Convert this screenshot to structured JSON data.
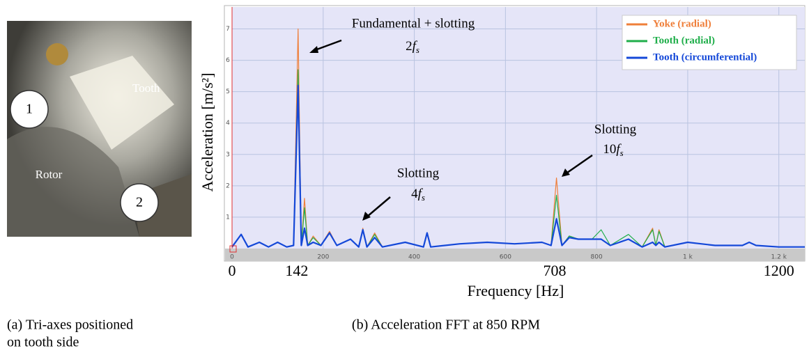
{
  "chart_data": {
    "type": "line",
    "y_label": "Acceleration [m/s²]",
    "x_label": "Frequency [Hz]",
    "x": [
      0,
      20,
      35,
      60,
      80,
      100,
      120,
      135,
      145,
      152,
      159,
      166,
      178,
      195,
      214,
      230,
      260,
      278,
      287,
      296,
      313,
      330,
      380,
      420,
      428,
      436,
      500,
      560,
      620,
      680,
      700,
      712,
      724,
      740,
      760,
      790,
      810,
      830,
      870,
      900,
      923,
      930,
      937,
      950,
      1000,
      1060,
      1120,
      1135,
      1150,
      1200,
      1257
    ],
    "series": [
      {
        "name": "Yoke (radial)",
        "color": "#ef7f3a",
        "values": [
          0.05,
          0.45,
          0.05,
          0.2,
          0.05,
          0.2,
          0.05,
          0.1,
          7.0,
          0.1,
          1.6,
          0.1,
          0.4,
          0.1,
          0.55,
          0.1,
          0.3,
          0.05,
          0.65,
          0.05,
          0.5,
          0.05,
          0.2,
          0.05,
          0.5,
          0.05,
          0.15,
          0.2,
          0.15,
          0.2,
          0.1,
          2.25,
          0.1,
          0.4,
          0.3,
          0.3,
          0.3,
          0.1,
          0.3,
          0.05,
          0.65,
          0.1,
          0.6,
          0.05,
          0.2,
          0.1,
          0.1,
          0.2,
          0.1,
          0.05,
          0.05
        ]
      },
      {
        "name": "Tooth (radial)",
        "color": "#1fae4a",
        "values": [
          0.05,
          0.45,
          0.05,
          0.2,
          0.05,
          0.2,
          0.05,
          0.1,
          5.7,
          0.1,
          1.3,
          0.1,
          0.35,
          0.1,
          0.5,
          0.1,
          0.3,
          0.05,
          0.6,
          0.05,
          0.45,
          0.05,
          0.2,
          0.05,
          0.5,
          0.05,
          0.15,
          0.2,
          0.15,
          0.2,
          0.1,
          1.7,
          0.1,
          0.4,
          0.3,
          0.3,
          0.6,
          0.1,
          0.45,
          0.05,
          0.6,
          0.1,
          0.55,
          0.05,
          0.2,
          0.1,
          0.1,
          0.2,
          0.1,
          0.05,
          0.05
        ]
      },
      {
        "name": "Tooth (circumferential)",
        "color": "#1448d8",
        "values": [
          0.05,
          0.45,
          0.05,
          0.2,
          0.05,
          0.2,
          0.05,
          0.1,
          5.2,
          0.1,
          0.65,
          0.1,
          0.2,
          0.1,
          0.5,
          0.1,
          0.3,
          0.05,
          0.6,
          0.05,
          0.35,
          0.05,
          0.2,
          0.05,
          0.5,
          0.05,
          0.15,
          0.2,
          0.15,
          0.2,
          0.1,
          0.95,
          0.1,
          0.35,
          0.3,
          0.3,
          0.3,
          0.1,
          0.3,
          0.05,
          0.2,
          0.1,
          0.2,
          0.05,
          0.2,
          0.1,
          0.1,
          0.2,
          0.1,
          0.05,
          0.05
        ]
      }
    ],
    "xlim": [
      0,
      1257
    ],
    "ylim": [
      0,
      7.7
    ],
    "xticks": [
      0,
      200,
      400,
      600,
      800,
      {
        "value": 1000,
        "label": "1 k"
      },
      {
        "value": 1200,
        "label": "1.2 k"
      }
    ],
    "yticks": [
      1,
      2,
      3,
      4,
      5,
      6,
      7
    ],
    "highlight_xticks": [
      0,
      142,
      708,
      1200
    ],
    "grid": true,
    "legend": "upper right",
    "annotations": [
      {
        "lines": [
          "Fundamental + slotting"
        ],
        "order": {
          "prefix": "2",
          "symbol": "f",
          "subscript": "s"
        }
      },
      {
        "lines": [
          "Slotting"
        ],
        "order": {
          "prefix": "4",
          "symbol": "f",
          "subscript": "s"
        }
      },
      {
        "lines": [
          "Slotting"
        ],
        "order": {
          "prefix": "10",
          "symbol": "f",
          "subscript": "s"
        }
      }
    ]
  },
  "photo": {
    "labels": [
      "Tooth",
      "Rotor"
    ],
    "markers": [
      "1",
      "2"
    ]
  },
  "captions": {
    "a": [
      "(a) Tri-axes positioned",
      "on tooth side"
    ],
    "b": "(b) Acceleration FFT at 850 RPM"
  }
}
